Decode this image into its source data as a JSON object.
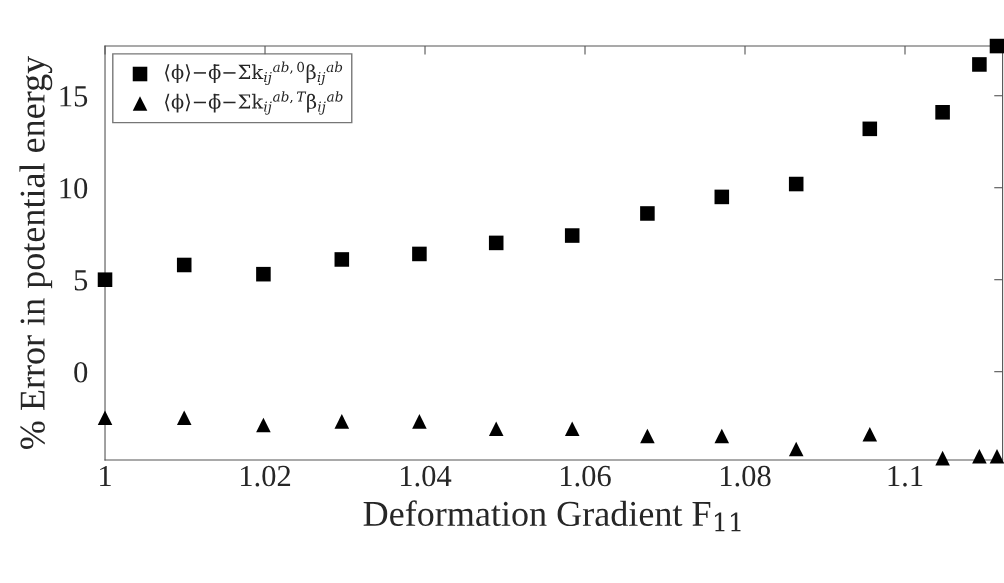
{
  "chart_data": {
    "type": "scatter",
    "xlabel": "Deformation Gradient F$_{11}$",
    "ylabel": "% Error in potential energy",
    "x": [
      1.0,
      1.0099,
      1.0198,
      1.0296,
      1.0393,
      1.0489,
      1.0584,
      1.0678,
      1.0771,
      1.0864,
      1.0956,
      1.1047,
      1.1093,
      1.1115
    ],
    "series": [
      {
        "name": "⟨ϕ⟩−ϕ̄−Σk$_{ij}$$^{ab,0}$β$_{ij}$$^{ab}$",
        "color": "#000000",
        "marker": "square",
        "values": [
          5.0,
          5.8,
          5.3,
          6.1,
          6.4,
          7.0,
          7.4,
          8.6,
          9.5,
          10.2,
          13.2,
          14.1,
          16.7,
          17.7
        ]
      },
      {
        "name": "⟨ϕ⟩−ϕ̄−Σk$_{ij}$$^{ab,T}$β$_{ij}$$^{ab}$",
        "color": "#000000",
        "marker": "triangle",
        "values": [
          -2.5,
          -2.5,
          -2.9,
          -2.7,
          -2.7,
          -3.1,
          -3.1,
          -3.5,
          -3.5,
          -4.2,
          -3.4,
          -4.7,
          -4.6,
          -4.6
        ]
      }
    ],
    "xlim": [
      1.0,
      1.1122
    ],
    "ylim": [
      -4.8,
      17.7
    ],
    "xticks": [
      1,
      1.02,
      1.04,
      1.06,
      1.08,
      1.1
    ],
    "yticks": [
      0,
      5,
      10,
      15
    ],
    "grid": false,
    "legend": "top left"
  }
}
